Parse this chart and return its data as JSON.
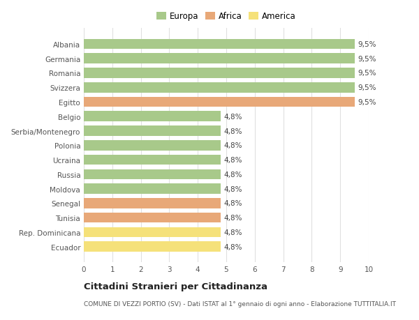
{
  "categories": [
    "Ecuador",
    "Rep. Dominicana",
    "Tunisia",
    "Senegal",
    "Moldova",
    "Russia",
    "Ucraina",
    "Polonia",
    "Serbia/Montenegro",
    "Belgio",
    "Egitto",
    "Svizzera",
    "Romania",
    "Germania",
    "Albania"
  ],
  "values": [
    4.8,
    4.8,
    4.8,
    4.8,
    4.8,
    4.8,
    4.8,
    4.8,
    4.8,
    4.8,
    9.5,
    9.5,
    9.5,
    9.5,
    9.5
  ],
  "colors": [
    "#f5e17a",
    "#f5e17a",
    "#e8a878",
    "#e8a878",
    "#a8c98a",
    "#a8c98a",
    "#a8c98a",
    "#a8c98a",
    "#a8c98a",
    "#a8c98a",
    "#e8a878",
    "#a8c98a",
    "#a8c98a",
    "#a8c98a",
    "#a8c98a"
  ],
  "labels": [
    "4,8%",
    "4,8%",
    "4,8%",
    "4,8%",
    "4,8%",
    "4,8%",
    "4,8%",
    "4,8%",
    "4,8%",
    "4,8%",
    "9,5%",
    "9,5%",
    "9,5%",
    "9,5%",
    "9,5%"
  ],
  "legend": [
    {
      "label": "Europa",
      "color": "#a8c98a"
    },
    {
      "label": "Africa",
      "color": "#e8a878"
    },
    {
      "label": "America",
      "color": "#f5e17a"
    }
  ],
  "xlim": [
    0,
    10
  ],
  "xticks": [
    0,
    1,
    2,
    3,
    4,
    5,
    6,
    7,
    8,
    9,
    10
  ],
  "title": "Cittadini Stranieri per Cittadinanza",
  "subtitle": "COMUNE DI VEZZI PORTIO (SV) - Dati ISTAT al 1° gennaio di ogni anno - Elaborazione TUTTITALIA.IT",
  "background_color": "#ffffff",
  "grid_color": "#e0e0e0",
  "bar_height": 0.7,
  "label_fontsize": 7.5,
  "tick_fontsize": 7.5,
  "title_fontsize": 9.5,
  "subtitle_fontsize": 6.5
}
